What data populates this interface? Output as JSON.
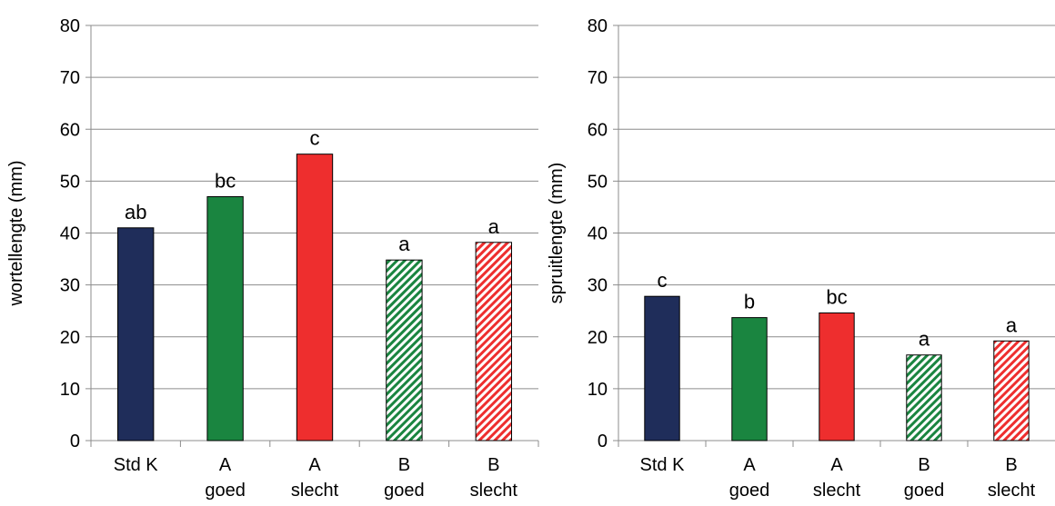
{
  "chart_data": [
    {
      "type": "bar",
      "ylabel": "wortellengte (mm)",
      "ylim": [
        0,
        80
      ],
      "yticks": [
        0,
        10,
        20,
        30,
        40,
        50,
        60,
        70,
        80
      ],
      "grid": true,
      "categories": [
        [
          "Std K"
        ],
        [
          "A",
          "goed"
        ],
        [
          "A",
          "slecht"
        ],
        [
          "B",
          "goed"
        ],
        [
          "B",
          "slecht"
        ]
      ],
      "values": [
        41,
        47,
        55.2,
        34.8,
        38.2
      ],
      "labels": [
        "ab",
        "bc",
        "c",
        "a",
        "a"
      ],
      "colors": [
        "#1f2d5a",
        "#1a8540",
        "#ee2e2e",
        "#1a8540",
        "#ee2e2e"
      ],
      "fill_styles": [
        "solid",
        "solid",
        "solid",
        "hatched",
        "hatched"
      ]
    },
    {
      "type": "bar",
      "ylabel": "spruitlengte (mm)",
      "ylim": [
        0,
        80
      ],
      "yticks": [
        0,
        10,
        20,
        30,
        40,
        50,
        60,
        70,
        80
      ],
      "grid": true,
      "categories": [
        [
          "Std K"
        ],
        [
          "A",
          "goed"
        ],
        [
          "A",
          "slecht"
        ],
        [
          "B",
          "goed"
        ],
        [
          "B",
          "slecht"
        ]
      ],
      "values": [
        27.8,
        23.7,
        24.6,
        16.5,
        19.2
      ],
      "labels": [
        "c",
        "b",
        "bc",
        "a",
        "a"
      ],
      "colors": [
        "#1f2d5a",
        "#1a8540",
        "#ee2e2e",
        "#1a8540",
        "#ee2e2e"
      ],
      "fill_styles": [
        "solid",
        "solid",
        "solid",
        "hatched",
        "hatched"
      ]
    }
  ]
}
